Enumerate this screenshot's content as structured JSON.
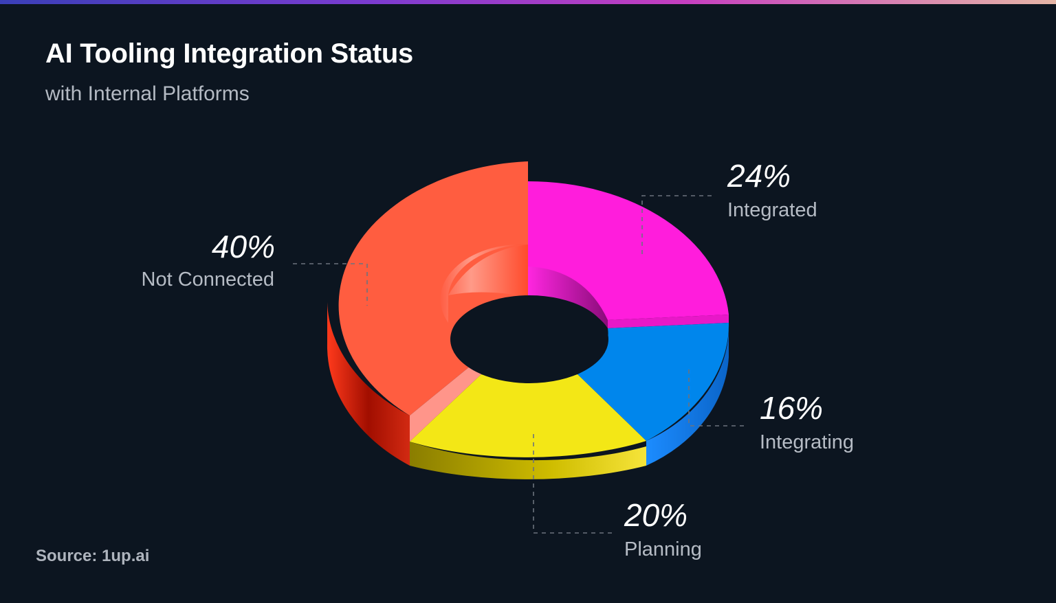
{
  "title": "AI Tooling Integration Status",
  "subtitle": "with Internal Platforms",
  "source": "Source: 1up.ai",
  "colors": {
    "background": "#0c1520",
    "integrated": "#ff1ddc",
    "integrating": "#0086ec",
    "planning": "#f3e716",
    "not_connected": "#ff5d40"
  },
  "chart_data": {
    "type": "pie",
    "style": "3d-donut",
    "title": "AI Tooling Integration Status",
    "subtitle": "with Internal Platforms",
    "unit": "%",
    "slices": [
      {
        "label": "Integrated",
        "value": 24,
        "display": "24%",
        "color": "#ff1ddc",
        "side": "#b8129e"
      },
      {
        "label": "Integrating",
        "value": 16,
        "display": "16%",
        "color": "#0086ec",
        "side": "#0a6fd6"
      },
      {
        "label": "Planning",
        "value": 20,
        "display": "20%",
        "color": "#f3e716",
        "side": "#c9b800"
      },
      {
        "label": "Not Connected",
        "value": 40,
        "display": "40%",
        "color": "#ff5d40",
        "side": "#d82a10"
      }
    ]
  }
}
